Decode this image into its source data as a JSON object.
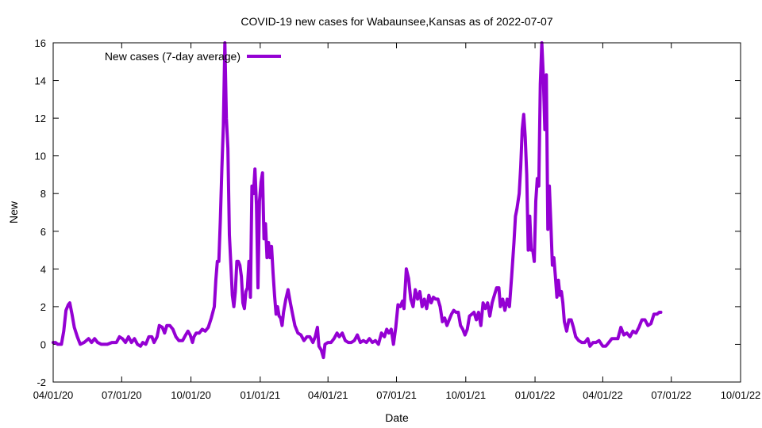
{
  "chart_data": {
    "type": "line",
    "title": "COVID-19 new cases for Wabaunsee,Kansas as of 2022-07-07",
    "xlabel": "Date",
    "ylabel": "New",
    "xlim": [
      "2020-04-01",
      "2022-10-01"
    ],
    "ylim": [
      -2,
      16
    ],
    "grid": false,
    "legend_position": "top-left",
    "x_ticks": [
      "2020-04-01",
      "2020-07-01",
      "2020-10-01",
      "2021-01-01",
      "2021-04-01",
      "2021-07-01",
      "2021-10-01",
      "2022-01-01",
      "2022-04-01",
      "2022-07-01",
      "2022-10-01"
    ],
    "x_tick_labels": [
      "04/01/20",
      "07/01/20",
      "10/01/20",
      "01/01/21",
      "04/01/21",
      "07/01/21",
      "10/01/21",
      "01/01/22",
      "04/01/22",
      "07/01/22",
      "10/01/22"
    ],
    "y_ticks": [
      -2,
      0,
      2,
      4,
      6,
      8,
      10,
      12,
      14,
      16
    ],
    "y_tick_labels": [
      "-2",
      "0",
      "2",
      "4",
      "6",
      "8",
      "10",
      "12",
      "14",
      "16"
    ],
    "series": [
      {
        "name": "New cases (7-day average)",
        "color": "#9400d3",
        "points": [
          [
            "2020-04-01",
            0.1
          ],
          [
            "2020-04-04",
            0.1
          ],
          [
            "2020-04-07",
            0.0
          ],
          [
            "2020-04-12",
            0.0
          ],
          [
            "2020-04-15",
            0.7
          ],
          [
            "2020-04-18",
            1.8
          ],
          [
            "2020-04-21",
            2.1
          ],
          [
            "2020-04-23",
            2.2
          ],
          [
            "2020-04-26",
            1.6
          ],
          [
            "2020-04-29",
            0.9
          ],
          [
            "2020-05-03",
            0.4
          ],
          [
            "2020-05-07",
            0.0
          ],
          [
            "2020-05-12",
            0.1
          ],
          [
            "2020-05-18",
            0.3
          ],
          [
            "2020-05-22",
            0.1
          ],
          [
            "2020-05-26",
            0.3
          ],
          [
            "2020-05-30",
            0.1
          ],
          [
            "2020-06-04",
            0.0
          ],
          [
            "2020-06-12",
            0.0
          ],
          [
            "2020-06-18",
            0.1
          ],
          [
            "2020-06-24",
            0.1
          ],
          [
            "2020-06-28",
            0.4
          ],
          [
            "2020-07-02",
            0.3
          ],
          [
            "2020-07-06",
            0.1
          ],
          [
            "2020-07-10",
            0.4
          ],
          [
            "2020-07-14",
            0.1
          ],
          [
            "2020-07-18",
            0.3
          ],
          [
            "2020-07-22",
            0.0
          ],
          [
            "2020-07-26",
            -0.1
          ],
          [
            "2020-07-29",
            0.1
          ],
          [
            "2020-08-02",
            0.0
          ],
          [
            "2020-08-06",
            0.4
          ],
          [
            "2020-08-10",
            0.4
          ],
          [
            "2020-08-13",
            0.1
          ],
          [
            "2020-08-17",
            0.4
          ],
          [
            "2020-08-20",
            1.0
          ],
          [
            "2020-08-24",
            0.9
          ],
          [
            "2020-08-27",
            0.6
          ],
          [
            "2020-08-30",
            1.0
          ],
          [
            "2020-09-03",
            1.0
          ],
          [
            "2020-09-07",
            0.8
          ],
          [
            "2020-09-11",
            0.4
          ],
          [
            "2020-09-15",
            0.2
          ],
          [
            "2020-09-20",
            0.2
          ],
          [
            "2020-09-24",
            0.5
          ],
          [
            "2020-09-27",
            0.7
          ],
          [
            "2020-09-30",
            0.5
          ],
          [
            "2020-10-03",
            0.1
          ],
          [
            "2020-10-05",
            0.4
          ],
          [
            "2020-10-08",
            0.6
          ],
          [
            "2020-10-12",
            0.6
          ],
          [
            "2020-10-16",
            0.8
          ],
          [
            "2020-10-20",
            0.7
          ],
          [
            "2020-10-24",
            0.9
          ],
          [
            "2020-10-28",
            1.4
          ],
          [
            "2020-11-01",
            2.0
          ],
          [
            "2020-11-03",
            3.4
          ],
          [
            "2020-11-05",
            4.4
          ],
          [
            "2020-11-07",
            4.4
          ],
          [
            "2020-11-09",
            6.6
          ],
          [
            "2020-11-11",
            9.3
          ],
          [
            "2020-11-13",
            11.6
          ],
          [
            "2020-11-15",
            16.0
          ],
          [
            "2020-11-17",
            12.0
          ],
          [
            "2020-11-19",
            10.4
          ],
          [
            "2020-11-21",
            5.8
          ],
          [
            "2020-11-23",
            4.2
          ],
          [
            "2020-11-25",
            2.6
          ],
          [
            "2020-11-27",
            2.0
          ],
          [
            "2020-11-29",
            2.8
          ],
          [
            "2020-12-01",
            4.4
          ],
          [
            "2020-12-03",
            4.4
          ],
          [
            "2020-12-05",
            4.2
          ],
          [
            "2020-12-07",
            3.6
          ],
          [
            "2020-12-09",
            2.2
          ],
          [
            "2020-12-11",
            1.9
          ],
          [
            "2020-12-13",
            2.8
          ],
          [
            "2020-12-15",
            3.0
          ],
          [
            "2020-12-17",
            4.4
          ],
          [
            "2020-12-19",
            2.5
          ],
          [
            "2020-12-21",
            8.4
          ],
          [
            "2020-12-23",
            8.0
          ],
          [
            "2020-12-25",
            9.3
          ],
          [
            "2020-12-27",
            7.4
          ],
          [
            "2020-12-29",
            3.0
          ],
          [
            "2020-12-31",
            7.6
          ],
          [
            "2021-01-02",
            8.6
          ],
          [
            "2021-01-04",
            9.1
          ],
          [
            "2021-01-06",
            5.6
          ],
          [
            "2021-01-08",
            6.4
          ],
          [
            "2021-01-10",
            4.6
          ],
          [
            "2021-01-12",
            5.4
          ],
          [
            "2021-01-14",
            4.6
          ],
          [
            "2021-01-16",
            5.2
          ],
          [
            "2021-01-18",
            3.8
          ],
          [
            "2021-01-20",
            2.6
          ],
          [
            "2021-01-22",
            1.6
          ],
          [
            "2021-01-24",
            2.0
          ],
          [
            "2021-01-26",
            1.5
          ],
          [
            "2021-01-28",
            1.4
          ],
          [
            "2021-01-30",
            1.0
          ],
          [
            "2021-02-01",
            1.7
          ],
          [
            "2021-02-04",
            2.4
          ],
          [
            "2021-02-07",
            2.9
          ],
          [
            "2021-02-10",
            2.2
          ],
          [
            "2021-02-13",
            1.6
          ],
          [
            "2021-02-16",
            1.0
          ],
          [
            "2021-02-20",
            0.6
          ],
          [
            "2021-02-24",
            0.5
          ],
          [
            "2021-02-28",
            0.2
          ],
          [
            "2021-03-04",
            0.4
          ],
          [
            "2021-03-08",
            0.4
          ],
          [
            "2021-03-12",
            0.1
          ],
          [
            "2021-03-15",
            0.4
          ],
          [
            "2021-03-18",
            0.9
          ],
          [
            "2021-03-20",
            -0.1
          ],
          [
            "2021-03-23",
            -0.3
          ],
          [
            "2021-03-26",
            -0.7
          ],
          [
            "2021-03-28",
            0.0
          ],
          [
            "2021-04-01",
            0.1
          ],
          [
            "2021-04-05",
            0.1
          ],
          [
            "2021-04-09",
            0.3
          ],
          [
            "2021-04-13",
            0.6
          ],
          [
            "2021-04-16",
            0.4
          ],
          [
            "2021-04-20",
            0.6
          ],
          [
            "2021-04-24",
            0.2
          ],
          [
            "2021-04-28",
            0.1
          ],
          [
            "2021-05-02",
            0.1
          ],
          [
            "2021-05-06",
            0.2
          ],
          [
            "2021-05-10",
            0.5
          ],
          [
            "2021-05-14",
            0.1
          ],
          [
            "2021-05-18",
            0.2
          ],
          [
            "2021-05-22",
            0.1
          ],
          [
            "2021-05-26",
            0.3
          ],
          [
            "2021-05-30",
            0.1
          ],
          [
            "2021-06-03",
            0.2
          ],
          [
            "2021-06-07",
            0.0
          ],
          [
            "2021-06-11",
            0.6
          ],
          [
            "2021-06-15",
            0.4
          ],
          [
            "2021-06-18",
            0.8
          ],
          [
            "2021-06-21",
            0.6
          ],
          [
            "2021-06-24",
            0.8
          ],
          [
            "2021-06-27",
            0.0
          ],
          [
            "2021-06-30",
            0.9
          ],
          [
            "2021-07-03",
            2.1
          ],
          [
            "2021-07-06",
            2.0
          ],
          [
            "2021-07-09",
            2.3
          ],
          [
            "2021-07-11",
            1.9
          ],
          [
            "2021-07-14",
            4.0
          ],
          [
            "2021-07-17",
            3.5
          ],
          [
            "2021-07-20",
            2.4
          ],
          [
            "2021-07-23",
            2.0
          ],
          [
            "2021-07-26",
            2.9
          ],
          [
            "2021-07-29",
            2.4
          ],
          [
            "2021-08-01",
            2.8
          ],
          [
            "2021-08-04",
            2.0
          ],
          [
            "2021-08-07",
            2.4
          ],
          [
            "2021-08-10",
            1.9
          ],
          [
            "2021-08-13",
            2.6
          ],
          [
            "2021-08-16",
            2.2
          ],
          [
            "2021-08-19",
            2.5
          ],
          [
            "2021-08-22",
            2.4
          ],
          [
            "2021-08-25",
            2.4
          ],
          [
            "2021-08-28",
            2.0
          ],
          [
            "2021-08-31",
            1.2
          ],
          [
            "2021-09-03",
            1.4
          ],
          [
            "2021-09-06",
            1.0
          ],
          [
            "2021-09-09",
            1.3
          ],
          [
            "2021-09-12",
            1.6
          ],
          [
            "2021-09-15",
            1.8
          ],
          [
            "2021-09-18",
            1.7
          ],
          [
            "2021-09-21",
            1.7
          ],
          [
            "2021-09-24",
            1.0
          ],
          [
            "2021-09-27",
            0.8
          ],
          [
            "2021-09-30",
            0.5
          ],
          [
            "2021-10-03",
            0.8
          ],
          [
            "2021-10-06",
            1.5
          ],
          [
            "2021-10-09",
            1.6
          ],
          [
            "2021-10-12",
            1.7
          ],
          [
            "2021-10-15",
            1.3
          ],
          [
            "2021-10-18",
            1.7
          ],
          [
            "2021-10-21",
            1.0
          ],
          [
            "2021-10-24",
            2.2
          ],
          [
            "2021-10-27",
            1.9
          ],
          [
            "2021-10-30",
            2.2
          ],
          [
            "2021-11-02",
            1.5
          ],
          [
            "2021-11-05",
            2.2
          ],
          [
            "2021-11-08",
            2.6
          ],
          [
            "2021-11-11",
            3.0
          ],
          [
            "2021-11-14",
            3.0
          ],
          [
            "2021-11-16",
            2.0
          ],
          [
            "2021-11-19",
            2.4
          ],
          [
            "2021-11-22",
            1.8
          ],
          [
            "2021-11-25",
            2.4
          ],
          [
            "2021-11-28",
            2.0
          ],
          [
            "2021-12-01",
            3.6
          ],
          [
            "2021-12-04",
            5.4
          ],
          [
            "2021-12-06",
            6.8
          ],
          [
            "2021-12-08",
            7.2
          ],
          [
            "2021-12-11",
            8.0
          ],
          [
            "2021-12-13",
            9.4
          ],
          [
            "2021-12-15",
            11.4
          ],
          [
            "2021-12-17",
            12.2
          ],
          [
            "2021-12-19",
            11.0
          ],
          [
            "2021-12-21",
            9.0
          ],
          [
            "2021-12-23",
            5.0
          ],
          [
            "2021-12-25",
            6.8
          ],
          [
            "2021-12-27",
            5.0
          ],
          [
            "2021-12-29",
            5.0
          ],
          [
            "2021-12-31",
            4.4
          ],
          [
            "2022-01-02",
            7.6
          ],
          [
            "2022-01-04",
            8.8
          ],
          [
            "2022-01-06",
            8.4
          ],
          [
            "2022-01-08",
            13.8
          ],
          [
            "2022-01-10",
            16.0
          ],
          [
            "2022-01-12",
            14.2
          ],
          [
            "2022-01-14",
            11.4
          ],
          [
            "2022-01-16",
            14.3
          ],
          [
            "2022-01-18",
            6.1
          ],
          [
            "2022-01-20",
            8.4
          ],
          [
            "2022-01-22",
            6.4
          ],
          [
            "2022-01-24",
            4.2
          ],
          [
            "2022-01-26",
            4.6
          ],
          [
            "2022-01-28",
            3.6
          ],
          [
            "2022-01-30",
            2.5
          ],
          [
            "2022-02-01",
            3.4
          ],
          [
            "2022-02-03",
            2.6
          ],
          [
            "2022-02-05",
            2.8
          ],
          [
            "2022-02-07",
            2.2
          ],
          [
            "2022-02-09",
            1.2
          ],
          [
            "2022-02-12",
            0.7
          ],
          [
            "2022-02-15",
            1.3
          ],
          [
            "2022-02-18",
            1.3
          ],
          [
            "2022-02-21",
            0.9
          ],
          [
            "2022-02-24",
            0.4
          ],
          [
            "2022-02-28",
            0.2
          ],
          [
            "2022-03-04",
            0.1
          ],
          [
            "2022-03-08",
            0.1
          ],
          [
            "2022-03-12",
            0.3
          ],
          [
            "2022-03-15",
            -0.1
          ],
          [
            "2022-03-19",
            0.1
          ],
          [
            "2022-03-23",
            0.1
          ],
          [
            "2022-03-27",
            0.2
          ],
          [
            "2022-04-01",
            -0.1
          ],
          [
            "2022-04-05",
            -0.1
          ],
          [
            "2022-04-09",
            0.1
          ],
          [
            "2022-04-13",
            0.3
          ],
          [
            "2022-04-17",
            0.3
          ],
          [
            "2022-04-21",
            0.3
          ],
          [
            "2022-04-25",
            0.9
          ],
          [
            "2022-04-29",
            0.5
          ],
          [
            "2022-05-03",
            0.6
          ],
          [
            "2022-05-07",
            0.4
          ],
          [
            "2022-05-11",
            0.7
          ],
          [
            "2022-05-15",
            0.6
          ],
          [
            "2022-05-19",
            0.9
          ],
          [
            "2022-05-23",
            1.3
          ],
          [
            "2022-05-27",
            1.3
          ],
          [
            "2022-05-31",
            1.0
          ],
          [
            "2022-06-04",
            1.1
          ],
          [
            "2022-06-08",
            1.6
          ],
          [
            "2022-06-12",
            1.6
          ],
          [
            "2022-06-15",
            1.7
          ],
          [
            "2022-06-17",
            1.7
          ]
        ]
      }
    ]
  }
}
